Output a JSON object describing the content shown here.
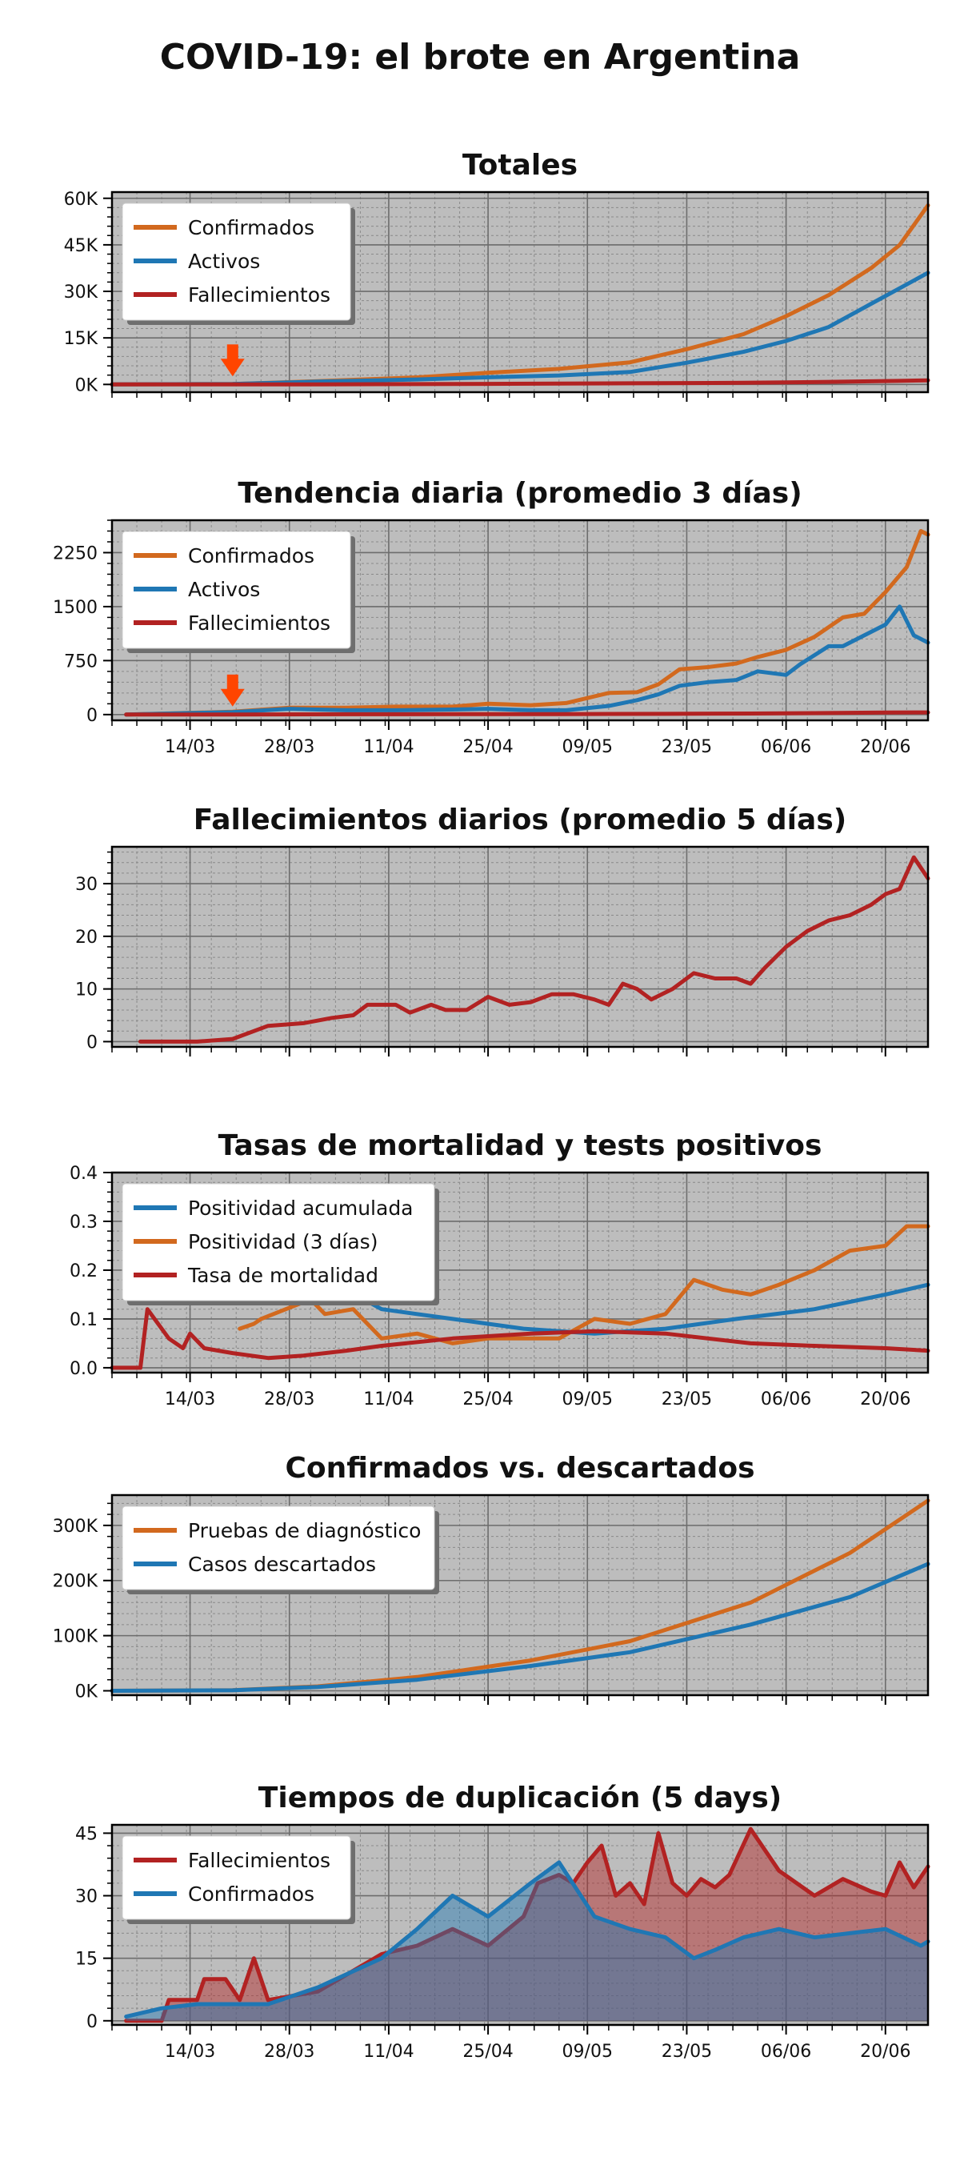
{
  "title": "COVID-19: el brote en Argentina",
  "colors": {
    "plot_bg": "#bdbdbd",
    "confirmados": "#d2691e",
    "activos": "#1f77b4",
    "fallecimientos": "#b22222",
    "arrow": "#ff4500"
  },
  "x_axis": {
    "start": "2020-03-03",
    "end": "2020-06-26",
    "tick_dates": [
      "2020-03-14",
      "2020-03-28",
      "2020-04-11",
      "2020-04-25",
      "2020-05-09",
      "2020-05-23",
      "2020-06-06",
      "2020-06-20"
    ],
    "tick_labels": [
      "14/03",
      "28/03",
      "11/04",
      "25/04",
      "09/05",
      "23/05",
      "06/06",
      "20/06"
    ]
  },
  "chart_data": [
    {
      "type": "line",
      "title": "Totales",
      "ylim": [
        -2500,
        62000
      ],
      "yticks": [
        0,
        15000,
        30000,
        45000,
        60000
      ],
      "ytick_labels": [
        "0K",
        "15K",
        "30K",
        "45K",
        "60K"
      ],
      "show_xtick_labels": false,
      "arrow_date": "2020-03-20",
      "series": [
        {
          "name": "Confirmados",
          "color": "#d2691e",
          "fill": false,
          "x": [
            "2020-03-03",
            "2020-03-20",
            "2020-04-01",
            "2020-04-15",
            "2020-04-25",
            "2020-05-05",
            "2020-05-15",
            "2020-05-23",
            "2020-05-31",
            "2020-06-06",
            "2020-06-12",
            "2020-06-18",
            "2020-06-22",
            "2020-06-26"
          ],
          "y": [
            1,
            128,
            1054,
            2272,
            3780,
            5020,
            7134,
            11353,
            16214,
            22020,
            28764,
            37510,
            44931,
            57744
          ]
        },
        {
          "name": "Activos",
          "color": "#1f77b4",
          "fill": false,
          "x": [
            "2020-03-03",
            "2020-03-20",
            "2020-04-01",
            "2020-04-15",
            "2020-04-25",
            "2020-05-05",
            "2020-05-15",
            "2020-05-23",
            "2020-05-31",
            "2020-06-06",
            "2020-06-12",
            "2020-06-18",
            "2020-06-22",
            "2020-06-26"
          ],
          "y": [
            1,
            120,
            900,
            1600,
            2300,
            2900,
            4000,
            7000,
            10500,
            14000,
            18500,
            26000,
            31000,
            36000
          ]
        },
        {
          "name": "Fallecimientos",
          "color": "#b22222",
          "fill": false,
          "x": [
            "2020-03-03",
            "2020-03-20",
            "2020-04-01",
            "2020-04-15",
            "2020-04-25",
            "2020-05-05",
            "2020-05-15",
            "2020-05-23",
            "2020-05-31",
            "2020-06-06",
            "2020-06-12",
            "2020-06-18",
            "2020-06-22",
            "2020-06-26"
          ],
          "y": [
            0,
            3,
            27,
            98,
            192,
            273,
            353,
            433,
            528,
            648,
            833,
            1011,
            1150,
            1307
          ]
        }
      ]
    },
    {
      "type": "line",
      "title": "Tendencia diaria (promedio 3 días)",
      "ylim": [
        -80,
        2700
      ],
      "yticks": [
        0,
        750,
        1500,
        2250
      ],
      "ytick_labels": [
        "0",
        "750",
        "1500",
        "2250"
      ],
      "show_xtick_labels": true,
      "arrow_date": "2020-03-20",
      "series": [
        {
          "name": "Confirmados",
          "color": "#d2691e",
          "fill": false,
          "x": [
            "2020-03-05",
            "2020-03-20",
            "2020-03-28",
            "2020-04-05",
            "2020-04-12",
            "2020-04-20",
            "2020-04-25",
            "2020-05-01",
            "2020-05-06",
            "2020-05-12",
            "2020-05-16",
            "2020-05-19",
            "2020-05-22",
            "2020-05-26",
            "2020-05-30",
            "2020-06-02",
            "2020-06-06",
            "2020-06-10",
            "2020-06-14",
            "2020-06-17",
            "2020-06-20",
            "2020-06-23",
            "2020-06-25",
            "2020-06-26"
          ],
          "y": [
            0,
            40,
            95,
            95,
            110,
            110,
            150,
            130,
            160,
            300,
            310,
            420,
            630,
            660,
            710,
            800,
            900,
            1080,
            1350,
            1400,
            1700,
            2050,
            2550,
            2500
          ]
        },
        {
          "name": "Activos",
          "color": "#1f77b4",
          "fill": false,
          "x": [
            "2020-03-05",
            "2020-03-20",
            "2020-03-28",
            "2020-04-05",
            "2020-04-12",
            "2020-04-20",
            "2020-04-25",
            "2020-05-01",
            "2020-05-06",
            "2020-05-12",
            "2020-05-16",
            "2020-05-19",
            "2020-05-22",
            "2020-05-26",
            "2020-05-30",
            "2020-06-02",
            "2020-06-06",
            "2020-06-08",
            "2020-06-12",
            "2020-06-14",
            "2020-06-17",
            "2020-06-20",
            "2020-06-22",
            "2020-06-24",
            "2020-06-26"
          ],
          "y": [
            0,
            35,
            80,
            60,
            60,
            70,
            80,
            60,
            60,
            120,
            200,
            280,
            400,
            450,
            480,
            600,
            550,
            700,
            950,
            950,
            1100,
            1250,
            1500,
            1100,
            1000
          ]
        },
        {
          "name": "Fallecimientos",
          "color": "#b22222",
          "fill": false,
          "x": [
            "2020-03-05",
            "2020-03-20",
            "2020-04-05",
            "2020-04-20",
            "2020-05-05",
            "2020-05-20",
            "2020-06-01",
            "2020-06-10",
            "2020-06-20",
            "2020-06-26"
          ],
          "y": [
            0,
            1,
            4,
            6,
            7,
            10,
            15,
            20,
            28,
            30
          ]
        }
      ]
    },
    {
      "type": "line",
      "title": "Fallecimientos diarios (promedio 5 días)",
      "ylim": [
        -1,
        37
      ],
      "yticks": [
        0,
        10,
        20,
        30
      ],
      "ytick_labels": [
        "0",
        "10",
        "20",
        "30"
      ],
      "show_xtick_labels": false,
      "series": [
        {
          "name": "Fallecimientos",
          "color": "#b22222",
          "fill": false,
          "x": [
            "2020-03-07",
            "2020-03-15",
            "2020-03-20",
            "2020-03-25",
            "2020-03-30",
            "2020-04-03",
            "2020-04-06",
            "2020-04-08",
            "2020-04-12",
            "2020-04-14",
            "2020-04-17",
            "2020-04-19",
            "2020-04-22",
            "2020-04-25",
            "2020-04-28",
            "2020-05-01",
            "2020-05-04",
            "2020-05-07",
            "2020-05-10",
            "2020-05-12",
            "2020-05-14",
            "2020-05-16",
            "2020-05-18",
            "2020-05-21",
            "2020-05-24",
            "2020-05-27",
            "2020-05-30",
            "2020-06-01",
            "2020-06-03",
            "2020-06-06",
            "2020-06-09",
            "2020-06-12",
            "2020-06-15",
            "2020-06-18",
            "2020-06-20",
            "2020-06-22",
            "2020-06-24",
            "2020-06-26"
          ],
          "y": [
            0,
            0,
            0.5,
            3,
            3.5,
            4.5,
            5,
            7,
            7,
            5.5,
            7,
            6,
            6,
            8.5,
            7,
            7.5,
            9,
            9,
            8,
            7,
            11,
            10,
            8,
            10,
            13,
            12,
            12,
            11,
            14,
            18,
            21,
            23,
            24,
            26,
            28,
            29,
            35,
            31
          ]
        }
      ]
    },
    {
      "type": "line",
      "title": "Tasas de mortalidad y tests positivos",
      "ylim": [
        -0.01,
        0.4
      ],
      "yticks": [
        0.0,
        0.1,
        0.2,
        0.3,
        0.4
      ],
      "ytick_labels": [
        "0.0",
        "0.1",
        "0.2",
        "0.3",
        "0.4"
      ],
      "show_xtick_labels": true,
      "series": [
        {
          "name": "Positividad acumulada",
          "color": "#1f77b4",
          "fill": false,
          "x": [
            "2020-04-05",
            "2020-04-10",
            "2020-04-20",
            "2020-04-30",
            "2020-05-10",
            "2020-05-20",
            "2020-05-30",
            "2020-06-10",
            "2020-06-20",
            "2020-06-26"
          ],
          "y": [
            0.16,
            0.12,
            0.1,
            0.08,
            0.07,
            0.08,
            0.1,
            0.12,
            0.15,
            0.17
          ]
        },
        {
          "name": "Positividad (3 días)",
          "color": "#d2691e",
          "fill": false,
          "x": [
            "2020-03-21",
            "2020-03-23",
            "2020-03-24",
            "2020-03-31",
            "2020-04-02",
            "2020-04-06",
            "2020-04-10",
            "2020-04-15",
            "2020-04-20",
            "2020-04-25",
            "2020-04-30",
            "2020-05-05",
            "2020-05-10",
            "2020-05-15",
            "2020-05-20",
            "2020-05-24",
            "2020-05-28",
            "2020-06-01",
            "2020-06-05",
            "2020-06-10",
            "2020-06-15",
            "2020-06-20",
            "2020-06-23",
            "2020-06-26"
          ],
          "y": [
            0.08,
            0.09,
            0.1,
            0.14,
            0.11,
            0.12,
            0.06,
            0.07,
            0.05,
            0.06,
            0.06,
            0.06,
            0.1,
            0.09,
            0.11,
            0.18,
            0.16,
            0.15,
            0.17,
            0.2,
            0.24,
            0.25,
            0.29,
            0.29
          ]
        },
        {
          "name": "Tasa de mortalidad",
          "color": "#b22222",
          "fill": false,
          "x": [
            "2020-03-03",
            "2020-03-07",
            "2020-03-08",
            "2020-03-11",
            "2020-03-13",
            "2020-03-14",
            "2020-03-16",
            "2020-03-20",
            "2020-03-25",
            "2020-03-30",
            "2020-04-05",
            "2020-04-10",
            "2020-04-20",
            "2020-05-01",
            "2020-05-10",
            "2020-05-20",
            "2020-06-01",
            "2020-06-10",
            "2020-06-20",
            "2020-06-26"
          ],
          "y": [
            0,
            0,
            0.12,
            0.06,
            0.04,
            0.07,
            0.04,
            0.03,
            0.02,
            0.025,
            0.035,
            0.045,
            0.06,
            0.07,
            0.075,
            0.07,
            0.05,
            0.045,
            0.04,
            0.035
          ]
        }
      ]
    },
    {
      "type": "line",
      "title": "Confirmados vs. descartados",
      "ylim": [
        -8000,
        355000
      ],
      "yticks": [
        0,
        100000,
        200000,
        300000
      ],
      "ytick_labels": [
        "0K",
        "100K",
        "200K",
        "300K"
      ],
      "show_xtick_labels": false,
      "series": [
        {
          "name": "Pruebas de diagnóstico",
          "color": "#d2691e",
          "fill": false,
          "x": [
            "2020-03-03",
            "2020-03-20",
            "2020-04-01",
            "2020-04-15",
            "2020-05-01",
            "2020-05-15",
            "2020-06-01",
            "2020-06-15",
            "2020-06-26"
          ],
          "y": [
            0,
            1000,
            8000,
            25000,
            55000,
            90000,
            160000,
            250000,
            345000
          ]
        },
        {
          "name": "Casos descartados",
          "color": "#1f77b4",
          "fill": false,
          "x": [
            "2020-03-03",
            "2020-03-20",
            "2020-04-01",
            "2020-04-15",
            "2020-05-01",
            "2020-05-15",
            "2020-06-01",
            "2020-06-15",
            "2020-06-26"
          ],
          "y": [
            0,
            900,
            7000,
            20000,
            45000,
            70000,
            120000,
            170000,
            230000
          ]
        }
      ]
    },
    {
      "type": "area",
      "title": "Tiempos de duplicación (5 days)",
      "ylim": [
        -1,
        47
      ],
      "yticks": [
        0,
        15,
        30,
        45
      ],
      "ytick_labels": [
        "0",
        "15",
        "30",
        "45"
      ],
      "show_xtick_labels": true,
      "series": [
        {
          "name": "Fallecimientos",
          "color": "#b22222",
          "fill": true,
          "x": [
            "2020-03-05",
            "2020-03-10",
            "2020-03-11",
            "2020-03-15",
            "2020-03-16",
            "2020-03-19",
            "2020-03-21",
            "2020-03-23",
            "2020-03-25",
            "2020-04-01",
            "2020-04-10",
            "2020-04-15",
            "2020-04-20",
            "2020-04-25",
            "2020-04-30",
            "2020-05-02",
            "2020-05-05",
            "2020-05-07",
            "2020-05-09",
            "2020-05-11",
            "2020-05-13",
            "2020-05-15",
            "2020-05-17",
            "2020-05-19",
            "2020-05-21",
            "2020-05-23",
            "2020-05-25",
            "2020-05-27",
            "2020-05-29",
            "2020-06-01",
            "2020-06-05",
            "2020-06-10",
            "2020-06-14",
            "2020-06-18",
            "2020-06-20",
            "2020-06-22",
            "2020-06-24",
            "2020-06-26"
          ],
          "y": [
            0,
            0,
            5,
            5,
            10,
            10,
            5,
            15,
            5,
            7,
            16,
            18,
            22,
            18,
            25,
            33,
            35,
            33,
            38,
            42,
            30,
            33,
            28,
            45,
            33,
            30,
            34,
            32,
            35,
            46,
            36,
            30,
            34,
            31,
            30,
            38,
            32,
            37
          ]
        },
        {
          "name": "Confirmados",
          "color": "#1f77b4",
          "fill": true,
          "x": [
            "2020-03-05",
            "2020-03-10",
            "2020-03-15",
            "2020-03-25",
            "2020-04-01",
            "2020-04-10",
            "2020-04-15",
            "2020-04-20",
            "2020-04-25",
            "2020-05-01",
            "2020-05-05",
            "2020-05-10",
            "2020-05-15",
            "2020-05-20",
            "2020-05-24",
            "2020-05-27",
            "2020-05-31",
            "2020-06-05",
            "2020-06-10",
            "2020-06-15",
            "2020-06-20",
            "2020-06-25",
            "2020-06-26"
          ],
          "y": [
            1,
            3,
            4,
            4,
            8,
            15,
            22,
            30,
            25,
            33,
            38,
            25,
            22,
            20,
            15,
            17,
            20,
            22,
            20,
            21,
            22,
            18,
            19
          ]
        }
      ]
    }
  ]
}
